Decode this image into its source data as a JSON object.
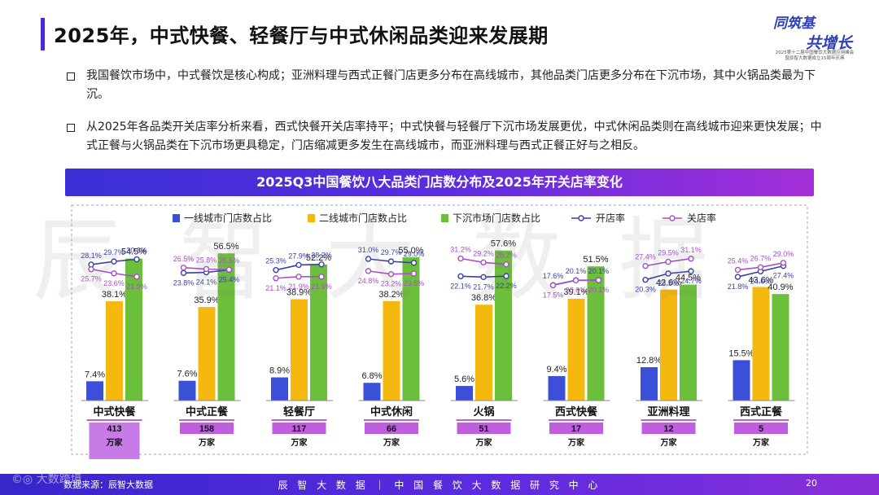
{
  "page": {
    "title": "2025年，中式快餐、轻餐厅与中式休闲品类迎来发展期",
    "logo": {
      "line1": "同筑基",
      "line2": "共增长",
      "line3": "2025第十二届中国餐饮大数据应用峰会\n暨辰智大数据成立15周年庆典"
    },
    "bullets": [
      "我国餐饮市场中，中式餐饮是核心构成；亚洲料理与西式正餐门店更多分布在高线城市，其他品类门店更多分布在下沉市场，其中火锅品类最为下沉。",
      "从2025年各品类开关店率分析来看，西式快餐开关店率持平；中式快餐与轻餐厅下沉市场发展更优，中式休闲品类则在高线城市迎来更快发展；中式正餐与火锅品类在下沉市场更具稳定，门店缩减更多发生在高线城市，而亚洲料理与西式正餐正好与之相反。"
    ],
    "watermark": "辰智大数据",
    "footer": {
      "source": "数据来源：辰智大数据",
      "center": "辰 智 大 数 据 ｜ 中 国 餐 饮 大 数 据 研 究 中 心",
      "page_number": "20",
      "corner_mark": "©◎ 大数跨境"
    }
  },
  "colors": {
    "tier1": "#3b4fd8",
    "tier2": "#f5b80f",
    "lower": "#6bbf3a",
    "open_line": "#3a3fa8",
    "close_line": "#a94fc8",
    "count_box": "#bf5fe0",
    "count_box_first": "#c77be6",
    "dashed_frame": "#9aa0c8"
  },
  "chart_data": {
    "type": "bar",
    "title": "2025Q3中国餐饮八大品类门店数分布及2025年开关店率变化",
    "categories": [
      "中式快餐",
      "中式正餐",
      "轻餐厅",
      "中式休闲",
      "火锅",
      "西式快餐",
      "亚洲料理",
      "西式正餐"
    ],
    "series": [
      {
        "name": "一线城市门店数占比",
        "values": [
          7.4,
          7.6,
          8.9,
          6.8,
          5.6,
          9.4,
          12.8,
          15.5
        ]
      },
      {
        "name": "二线城市门店数占比",
        "values": [
          38.1,
          35.9,
          38.9,
          38.2,
          36.8,
          39.1,
          42.6,
          43.6
        ]
      },
      {
        "name": "下沉市场门店数占比",
        "values": [
          54.5,
          56.5,
          52.2,
          55.0,
          57.6,
          51.5,
          44.5,
          40.9
        ]
      }
    ],
    "rate_lines": [
      {
        "name": "开店率",
        "values": [
          [
            28.1,
            29.7,
            30.8
          ],
          [
            23.8,
            24.1,
            25.4
          ],
          [
            25.3,
            27.9,
            28.2
          ],
          [
            31.0,
            29.7,
            29.0
          ],
          [
            22.1,
            21.7,
            22.2
          ],
          [
            17.6,
            20.1,
            20.1
          ],
          [
            20.3,
            23.5,
            24.7
          ],
          [
            21.8,
            24.6,
            27.4
          ]
        ]
      },
      {
        "name": "关店率",
        "values": [
          [
            25.7,
            23.6,
            21.9
          ],
          [
            26.5,
            25.8,
            25.5
          ],
          [
            21.1,
            21.9,
            21.9
          ],
          [
            24.8,
            23.2,
            23.5
          ],
          [
            31.2,
            29.2,
            28.2
          ],
          [
            17.5,
            20.0,
            20.1
          ],
          [
            27.4,
            29.5,
            31.1
          ],
          [
            25.4,
            26.7,
            29.0
          ]
        ]
      }
    ],
    "store_counts": [
      "413",
      "158",
      "117",
      "66",
      "51",
      "17",
      "12",
      "5"
    ],
    "count_unit": "万家",
    "ylim": [
      0,
      60
    ],
    "legend_position": "top"
  }
}
